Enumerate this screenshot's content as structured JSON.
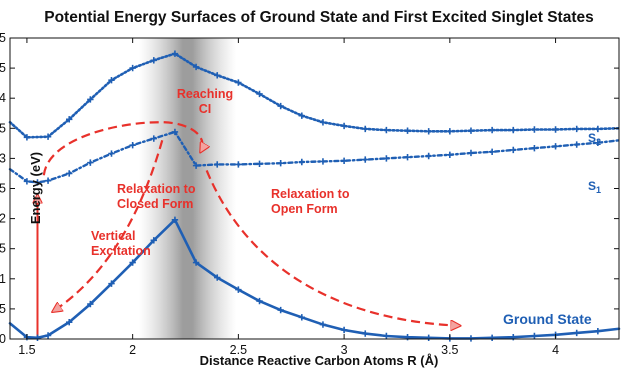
{
  "chart_data": {
    "type": "line",
    "title": "Potential Energy Surfaces of Ground State and First Excited Singlet States",
    "xlabel": "Distance Reactive Carbon Atoms R (Å)",
    "ylabel": "Energy (eV)",
    "xlim": [
      1.42,
      4.3
    ],
    "ylim": [
      0,
      5
    ],
    "xticks": [
      1.5,
      2,
      2.5,
      3,
      3.5,
      4
    ],
    "xtick_labels": [
      "1.5",
      "2",
      "2.5",
      "3",
      "3.5",
      "4"
    ],
    "yticks": [
      0,
      0.5,
      1,
      1.5,
      2,
      2.5,
      3,
      3.5,
      4,
      4.5,
      5
    ],
    "ytick_labels": [
      "0",
      "0.5",
      "1",
      "1.5",
      "2",
      "2.5",
      "3",
      "3.5",
      "4",
      "4.5",
      "5"
    ],
    "grid": false,
    "shaded_region": {
      "x_from": 2.03,
      "x_to": 2.49,
      "center": 2.2
    },
    "series": [
      {
        "name": "Ground State",
        "style": "solid",
        "color": "#1f5fb4",
        "x": [
          1.42,
          1.5,
          1.55,
          1.6,
          1.7,
          1.8,
          1.9,
          2.0,
          2.1,
          2.2,
          2.3,
          2.4,
          2.5,
          2.6,
          2.7,
          2.8,
          2.9,
          3.0,
          3.1,
          3.2,
          3.3,
          3.4,
          3.5,
          3.6,
          3.7,
          3.8,
          3.9,
          4.0,
          4.1,
          4.2,
          4.3
        ],
        "y": [
          0.26,
          0.03,
          0.02,
          0.06,
          0.28,
          0.58,
          0.92,
          1.27,
          1.64,
          1.98,
          1.27,
          1.02,
          0.82,
          0.63,
          0.48,
          0.36,
          0.24,
          0.15,
          0.09,
          0.05,
          0.03,
          0.02,
          0.01,
          0.01,
          0.02,
          0.03,
          0.05,
          0.07,
          0.1,
          0.13,
          0.17
        ]
      },
      {
        "name": "S₁",
        "style": "dash-dot",
        "color": "#1f5fb4",
        "x": [
          1.42,
          1.5,
          1.55,
          1.6,
          1.7,
          1.8,
          1.9,
          2.0,
          2.1,
          2.2,
          2.3,
          2.4,
          2.5,
          2.6,
          2.7,
          2.8,
          2.9,
          3.0,
          3.1,
          3.2,
          3.3,
          3.4,
          3.5,
          3.6,
          3.7,
          3.8,
          3.9,
          4.0,
          4.1,
          4.2,
          4.3
        ],
        "y": [
          2.82,
          2.62,
          2.6,
          2.63,
          2.75,
          2.93,
          3.08,
          3.22,
          3.33,
          3.44,
          2.88,
          2.9,
          2.9,
          2.91,
          2.92,
          2.94,
          2.95,
          2.96,
          2.98,
          3.0,
          3.02,
          3.04,
          3.06,
          3.09,
          3.11,
          3.14,
          3.17,
          3.2,
          3.23,
          3.26,
          3.3
        ]
      },
      {
        "name": "S₂",
        "style": "dotted",
        "color": "#1f5fb4",
        "x": [
          1.42,
          1.5,
          1.6,
          1.7,
          1.8,
          1.9,
          2.0,
          2.1,
          2.2,
          2.3,
          2.4,
          2.5,
          2.6,
          2.7,
          2.8,
          2.9,
          3.0,
          3.1,
          3.2,
          3.3,
          3.4,
          3.5,
          3.6,
          3.7,
          3.8,
          3.9,
          4.0,
          4.1,
          4.2,
          4.3
        ],
        "y": [
          3.6,
          3.35,
          3.36,
          3.65,
          3.98,
          4.3,
          4.5,
          4.63,
          4.74,
          4.52,
          4.38,
          4.26,
          4.07,
          3.87,
          3.71,
          3.6,
          3.54,
          3.49,
          3.47,
          3.46,
          3.45,
          3.45,
          3.46,
          3.47,
          3.47,
          3.48,
          3.48,
          3.49,
          3.49,
          3.5
        ]
      }
    ],
    "series_labels": {
      "ground": "Ground State",
      "s2_base": "S",
      "s2_sub": "2",
      "s1_base": "S",
      "s1_sub": "1"
    },
    "annotations": {
      "reaching_ci_line1": "Reaching",
      "reaching_ci_line2": "CI",
      "relax_closed_line1": "Relaxation to",
      "relax_closed_line2": "Closed Form",
      "relax_open_line1": "Relaxation to",
      "relax_open_line2": "Open Form",
      "vertical_line1": "Vertical",
      "vertical_line2": "Excitation"
    },
    "colors": {
      "curves": "#1f5fb4",
      "annotations": "#e8312b",
      "axes": "#111111"
    }
  }
}
